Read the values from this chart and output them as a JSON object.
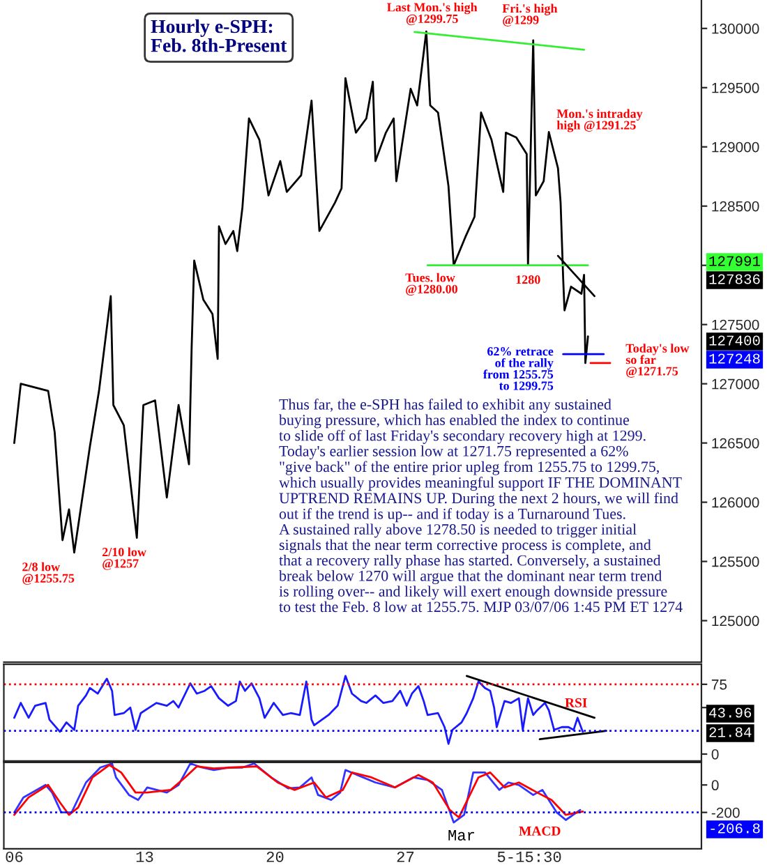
{
  "chart_data": [
    {
      "type": "line",
      "title": "Hourly e-SPH:\nFeb. 8th-Present",
      "tick_labels": "y",
      "xlim": [
        5.44,
        42.89
      ],
      "ylim": [
        124650,
        130240
      ],
      "yticks": [
        125000,
        125500,
        126000,
        126500,
        127000,
        127500,
        {
          "value": 128000,
          "label": null
        },
        128500,
        129000,
        129500,
        130000
      ],
      "series": [
        {
          "color": "#000000",
          "x": [
            6,
            6.35,
            7.82,
            8.17,
            8.59,
            8.94,
            9.22,
            10.06,
            10.55,
            11.18,
            11.32,
            11.88,
            12.58,
            12.93,
            13.56,
            14.19,
            14.82,
            15.38,
            15.52,
            15.66,
            16.15,
            16.64,
            16.92,
            16.99,
            17.34,
            17.76,
            17.97,
            18.25,
            18.6,
            19.16,
            19.65,
            20.28,
            20.63,
            21.4,
            21.96,
            22.38,
            23.22,
            23.57,
            23.78,
            24.34,
            24.9,
            25.25,
            25.39,
            25.95,
            26.37,
            26.51,
            27.28,
            27.63,
            28.12,
            28.33,
            28.75,
            29.31,
            29.59,
            30.22,
            30.71,
            31.06,
            31.62,
            32.25,
            32.39,
            32.95,
            33.51,
            33.58,
            33.86,
            34,
            34.42,
            34.7,
            35.19,
            35.33,
            35.47,
            35.54,
            35.89,
            36.45,
            36.59,
            36.66,
            36.8
          ],
          "values": [
            126500,
            127000,
            126940,
            126590,
            125680,
            125940,
            125575,
            126470,
            126940,
            127740,
            126820,
            126650,
            125700,
            126820,
            126860,
            126040,
            126820,
            126320,
            127290,
            128040,
            127710,
            127590,
            127210,
            128330,
            128180,
            128290,
            128120,
            128490,
            129240,
            129060,
            128590,
            128880,
            128620,
            128760,
            129390,
            128290,
            128530,
            128650,
            129580,
            129120,
            129240,
            129550,
            128880,
            129120,
            129240,
            128710,
            129490,
            129350,
            129975,
            129350,
            129290,
            128670,
            128000,
            128240,
            128410,
            129290,
            129060,
            128620,
            129120,
            129080,
            128940,
            128000,
            129900,
            128590,
            128710,
            129125,
            128820,
            128530,
            127880,
            127620,
            127820,
            127760,
            127920,
            127175,
            127400
          ]
        },
        {
          "color": "#33ee33",
          "x": [
            27.49,
            36.59
          ],
          "values": [
            129970,
            129820
          ]
        },
        {
          "color": "#33ee33",
          "x": [
            28.19,
            36.8
          ],
          "values": [
            128000,
            128000
          ]
        },
        {
          "color": "#000000",
          "x": [
            35.19,
            37.15
          ],
          "values": [
            128080,
            127740
          ]
        },
        {
          "color": "#0000ff",
          "x": [
            35.47,
            37.64
          ],
          "values": [
            127250,
            127250
          ]
        },
        {
          "color": "#ff0000",
          "x": [
            36.94,
            37.99
          ],
          "values": [
            127175,
            127175
          ]
        }
      ],
      "annotations": [
        {
          "text": "Last Mon.'s high\n@1299.75",
          "x": 28.12,
          "y": 129975
        },
        {
          "text": "Fri.'s high\n@1299",
          "x": 33.86,
          "y": 129900
        },
        {
          "text": "Mon.'s intraday\nhigh @1291.25",
          "x": 34.7,
          "y": 129125
        },
        {
          "text": "Tues. low\n@1280.00",
          "x": 29.59,
          "y": 128000
        },
        {
          "text": "1280",
          "x": 33.58,
          "y": 128000
        },
        {
          "text": "62% retrace\nof the rally\nfrom 1255.75\nto 1299.75",
          "x": 35.47,
          "y": 127250
        },
        {
          "text": "Today's low\nso far\n@1271.75",
          "x": 37.99,
          "y": 127175
        },
        {
          "text": "2/8 low\n@1255.75",
          "x": 9.22,
          "y": 125575
        },
        {
          "text": "2/10 low\n@1257",
          "x": 12.58,
          "y": 125700
        },
        "Thus far, the e-SPH has failed to exhibit any sustained\nbuying pressure, which has enabled the index to continue\nto slide off of last Friday's secondary recovery high at 1299.\nToday's earlier session low at 1271.75 represented a 62%\n\"give back\" of the entire prior upleg from 1255.75 to 1299.75,\nwhich usually provides meaningful support IF THE DOMINANT\nUPTREND REMAINS UP. During the next 2 hours, we will find\nout if the trend is up-- and if today is a Turnaround Tues.\nA sustained rally above 1278.50 is needed to trigger initial\nsignals that the near term corrective process is complete, and\nthat a recovery rally phase has started. Conversely, a sustained\nbreak below 1270 will argue that the dominant near term trend\nis rolling over-- and likely will exert enough downside pressure\nto test the Feb. 8 low at 1255.75. MJP 03/07/06 1:45 PM ET 1274",
        "127991",
        "127836",
        "127400",
        "127248"
      ]
    },
    {
      "type": "line",
      "tick_labels": "y",
      "xlim": [
        5.44,
        42.89
      ],
      "ylim": [
        -7.5,
        96.5
      ],
      "yticks": [
        75,
        {
          "value": 50,
          "label": null
        },
        0
      ],
      "series": [
        {
          "color": "#1a1aff",
          "x": [
            6,
            6.35,
            6.77,
            7.12,
            7.68,
            7.89,
            8.45,
            8.8,
            9.22,
            9.43,
            9.85,
            10.06,
            10.48,
            10.97,
            11.25,
            11.39,
            11.88,
            12.23,
            12.51,
            12.79,
            13.63,
            14.19,
            14.54,
            14.82,
            15.45,
            15.8,
            16.22,
            16.57,
            16.99,
            17.48,
            17.9,
            18.11,
            18.39,
            18.74,
            19.16,
            19.44,
            19.93,
            20.42,
            20.84,
            21.33,
            21.68,
            21.96,
            22.1,
            22.87,
            23.36,
            23.78,
            24.13,
            24.62,
            24.9,
            25.39,
            25.81,
            26.3,
            26.72,
            27.07,
            27.35,
            27.7,
            27.98,
            28.19,
            28.75,
            29.1,
            29.31,
            29.52,
            30.01,
            30.29,
            30.64,
            30.92,
            31.27,
            31.55,
            31.76,
            31.9,
            32.32,
            32.67,
            33.09,
            33.3,
            33.58,
            33.86,
            34.07,
            34.49,
            34.7,
            34.98,
            35.4,
            35.75,
            36.03,
            36.24,
            36.52
          ],
          "values": [
            39,
            55,
            39,
            52,
            55,
            37,
            24,
            34,
            26,
            52,
            63,
            71,
            65,
            81,
            68,
            42,
            44,
            50,
            26,
            44,
            55,
            52,
            57,
            50,
            76,
            65,
            68,
            73,
            60,
            52,
            57,
            78,
            68,
            76,
            60,
            39,
            55,
            42,
            44,
            42,
            78,
            37,
            31,
            42,
            52,
            84,
            65,
            57,
            55,
            63,
            55,
            57,
            68,
            52,
            65,
            73,
            57,
            42,
            44,
            29,
            11,
            26,
            34,
            44,
            60,
            78,
            71,
            68,
            50,
            29,
            57,
            55,
            60,
            26,
            60,
            42,
            47,
            55,
            47,
            26,
            29,
            29,
            26,
            39,
            24
          ]
        },
        {
          "color": "#000000",
          "x": [
            30.29,
            37.15
          ],
          "values": [
            84,
            39
          ]
        },
        {
          "color": "#000000",
          "x": [
            34.21,
            37.78
          ],
          "values": [
            16,
            25
          ]
        }
      ],
      "ref_lines": [
        {
          "axis": "y",
          "value": 75,
          "color": "#ff0000",
          "line_style": "dotted"
        },
        {
          "axis": "y",
          "value": 25,
          "color": "#0000ff",
          "line_style": "dotted"
        }
      ],
      "annotations": [
        "RSI",
        "43.96",
        "21.84"
      ]
    },
    {
      "type": "line",
      "xlim": [
        5.44,
        42.89
      ],
      "ylim": [
        -465,
        164
      ],
      "xticks": [
        {
          "value": 6,
          "label": "06"
        },
        13,
        20,
        27,
        {
          "value": 33.65,
          "label": "5-15:30"
        }
      ],
      "yticks": [
        0,
        -200
      ],
      "series": [
        {
          "color": "#3333ff",
          "x": [
            6,
            6.49,
            7.68,
            8.03,
            8.52,
            9.08,
            9.85,
            10.62,
            11.25,
            11.46,
            12.16,
            12.65,
            13.14,
            14.19,
            14.82,
            15.45,
            16.08,
            16.71,
            17.48,
            18.25,
            18.88,
            19.79,
            20.7,
            21.33,
            21.96,
            22.31,
            23.01,
            23.5,
            23.78,
            24.41,
            25.39,
            26.44,
            27.42,
            28.19,
            28.96,
            29.59,
            30.15,
            30.64,
            31.27,
            32.04,
            32.53,
            33.09,
            33.86,
            34.35,
            35.12,
            35.61,
            36.38
          ],
          "values": [
            -200,
            -91,
            0,
            -55,
            -200,
            -200,
            18,
            127,
            156,
            55,
            -73,
            -109,
            -18,
            -55,
            0,
            156,
            127,
            109,
            127,
            127,
            156,
            55,
            -25,
            -18,
            55,
            -73,
            -109,
            -55,
            109,
            73,
            18,
            -18,
            55,
            36,
            -36,
            -273,
            -218,
            91,
            91,
            -36,
            18,
            0,
            -73,
            -36,
            -200,
            -255,
            -182
          ]
        },
        {
          "color": "#ff0000",
          "x": [
            6,
            6.77,
            7.82,
            8.45,
            8.94,
            9.43,
            10.2,
            11.11,
            11.74,
            12.51,
            13.14,
            14.4,
            15.17,
            15.8,
            16.71,
            17.76,
            19.02,
            20.14,
            21.05,
            22.1,
            22.73,
            23.64,
            24.13,
            25.18,
            26.44,
            27.7,
            28.47,
            29.38,
            29.87,
            30.92,
            31.55,
            32.32,
            33.09,
            34.07,
            34.84,
            35.61,
            36.52
          ],
          "values": [
            -218,
            -91,
            0,
            -127,
            -218,
            -164,
            55,
            145,
            91,
            -55,
            -55,
            -36,
            55,
            135,
            120,
            127,
            135,
            18,
            -36,
            18,
            -91,
            -36,
            91,
            55,
            -18,
            73,
            18,
            -182,
            -236,
            55,
            91,
            -18,
            18,
            -55,
            -109,
            -218,
            -193
          ]
        }
      ],
      "ref_lines": [
        {
          "axis": "y",
          "value": -200,
          "color": "#0000ff",
          "line_style": "dotted"
        }
      ],
      "annotations": [
        "MACD",
        "Mar",
        "-206.8"
      ]
    }
  ]
}
